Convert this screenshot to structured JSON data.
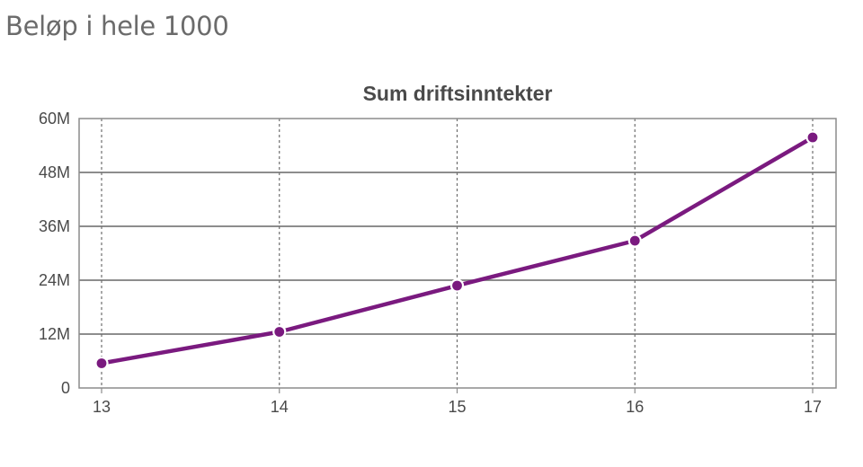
{
  "page": {
    "heading": "Beløp i hele 1000"
  },
  "colors": {
    "series": "#7a1a7f",
    "grid": "#7d7d7d",
    "frame": "#8c8c8c",
    "text": "#4a4a4a"
  },
  "chart_data": {
    "type": "line",
    "title": "Sum driftsinntekter",
    "xlabel": "",
    "ylabel": "",
    "categories": [
      "13",
      "14",
      "15",
      "16",
      "17"
    ],
    "series": [
      {
        "values": [
          5.5,
          12.5,
          22.8,
          32.8,
          55.8
        ]
      }
    ],
    "ylim": [
      0,
      60
    ],
    "y_ticks": [
      0,
      12,
      24,
      36,
      48,
      60
    ],
    "y_tick_labels": [
      "0",
      "12M",
      "24M",
      "36M",
      "48M",
      "60M"
    ],
    "grid": {
      "horizontal": "solid",
      "vertical": "dashed"
    },
    "legend": "none",
    "markers": true
  }
}
